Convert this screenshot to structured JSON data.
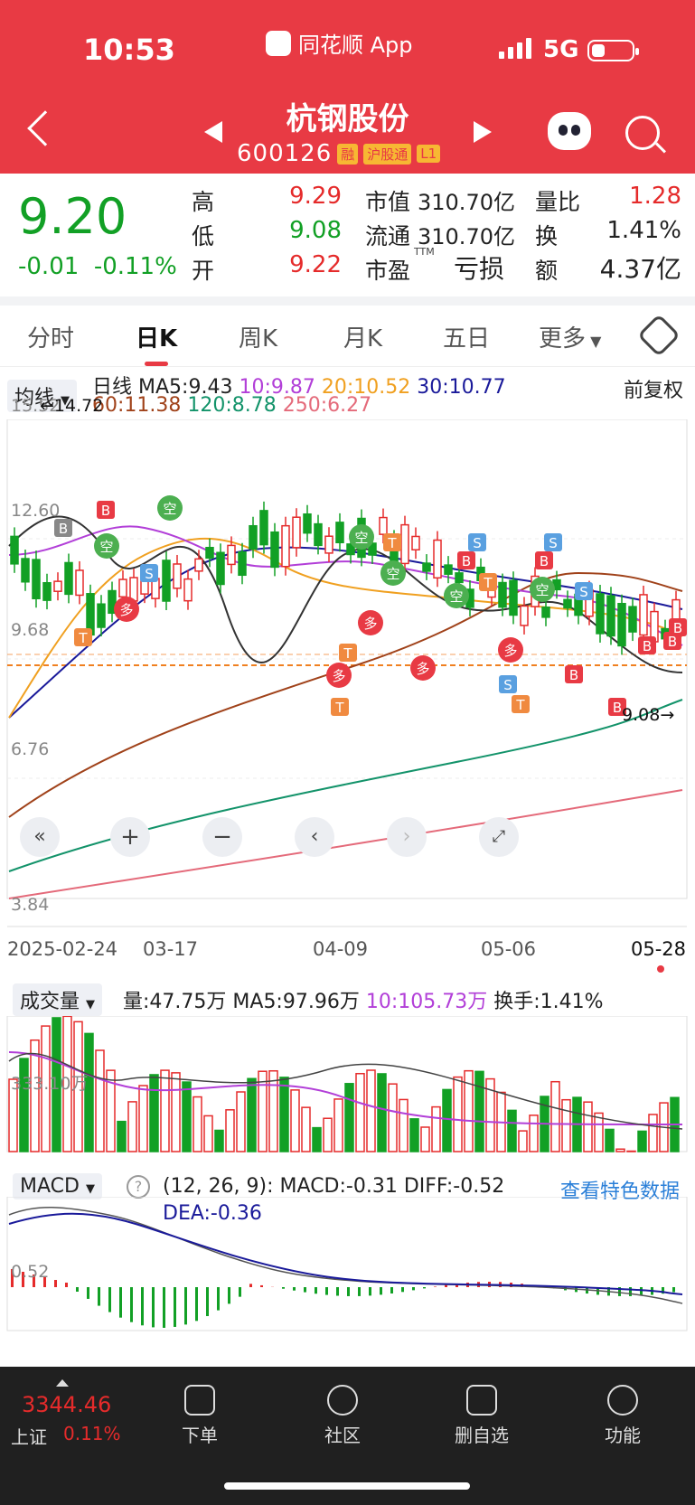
{
  "status": {
    "time": "10:53",
    "network": "5G",
    "app_name": "同花顺 App"
  },
  "header": {
    "stock_name": "杭钢股份",
    "stock_code": "600126",
    "tags": [
      "融",
      "沪股通",
      "L1"
    ]
  },
  "quote": {
    "price": "9.20",
    "change": "-0.01",
    "change_pct": "-0.11%",
    "high_label": "高",
    "high": "9.29",
    "low_label": "低",
    "low": "9.08",
    "open_label": "开",
    "open": "9.22",
    "mktcap_label": "市值",
    "mktcap": "310.70亿",
    "float_label": "流通",
    "float": "310.70亿",
    "pe_label": "市盈",
    "pe_sup": "TTM",
    "pe": "亏损",
    "vr_label": "量比",
    "vr": "1.28",
    "turnover_label": "换",
    "turnover": "1.41%",
    "amount_label": "额",
    "amount": "4.37亿"
  },
  "tabs": [
    "分时",
    "日K",
    "周K",
    "月K",
    "五日",
    "更多"
  ],
  "kline": {
    "ma_dropdown": "均线",
    "period": "日线",
    "ma5": "MA5:9.43",
    "ma10": "10:9.87",
    "ma20": "20:10.52",
    "ma30": "30:10.77",
    "ma60": "60:11.38",
    "ma120": "120:8.78",
    "ma250": "250:6.27",
    "adjust": "前复权",
    "y_labels": [
      "15.52",
      "12.60",
      "9.68",
      "6.76",
      "3.84"
    ],
    "max_mark": "14.72",
    "min_mark": "9.08",
    "dates": [
      "2025-02-24",
      "03-17",
      "04-09",
      "05-06",
      "05-28"
    ],
    "signals": [
      "B",
      "空",
      "S",
      "多",
      "T"
    ]
  },
  "volume": {
    "dropdown": "成交量",
    "vol": "量:47.75万",
    "ma5": "MA5:97.96万",
    "ma10": "10:105.73万",
    "turnover": "换手:1.41%",
    "axis": "333.10万"
  },
  "macd": {
    "dropdown": "MACD",
    "params": "(12, 26, 9):",
    "macd": "MACD:-0.31",
    "diff": "DIFF:-0.52",
    "dea": "DEA:-0.36",
    "link": "查看特色数据",
    "axis": "0.52"
  },
  "footer": {
    "index_value": "3344.46",
    "index_name": "上证",
    "index_pct": "0.11%",
    "items": [
      "下单",
      "社区",
      "删自选",
      "功能"
    ]
  },
  "colors": {
    "up": "#e52b2b",
    "down": "#12a025",
    "brand": "#e83a44"
  }
}
